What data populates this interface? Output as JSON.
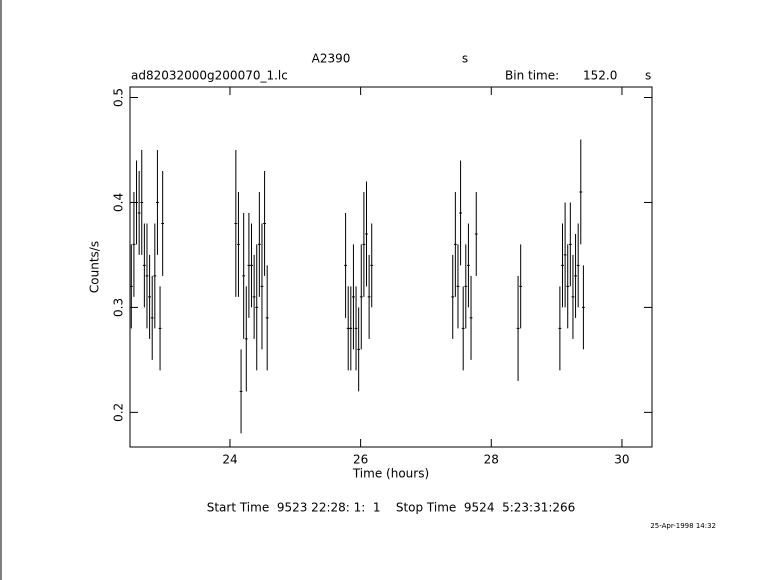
{
  "chart_data": {
    "type": "errorbar",
    "title": "A2390",
    "title_unit": "s",
    "subtitle": "ad82032000g200070_1.lc",
    "bin_label": "Bin time:",
    "bin_value": "152.0",
    "bin_unit": "s",
    "xlabel": "Time (hours)",
    "ylabel": "Counts/s",
    "footer": "Start Time  9523 22:28: 1:  1    Stop Time  9524  5:23:31:266",
    "date": "25-Apr-1998 14:32",
    "color": "#000000",
    "x": [
      22.49,
      22.53,
      22.57,
      22.61,
      22.65,
      22.69,
      22.73,
      22.77,
      22.81,
      22.85,
      22.89,
      22.93,
      22.97,
      24.09,
      24.13,
      24.17,
      24.21,
      24.25,
      24.29,
      24.33,
      24.37,
      24.41,
      24.45,
      24.49,
      24.53,
      24.57,
      25.77,
      25.81,
      25.85,
      25.89,
      25.93,
      25.97,
      26.01,
      26.05,
      26.09,
      26.13,
      26.17,
      27.41,
      27.45,
      27.49,
      27.53,
      27.57,
      27.61,
      27.65,
      27.69,
      27.77,
      28.41,
      28.45,
      29.05,
      29.09,
      29.13,
      29.17,
      29.21,
      29.25,
      29.29,
      29.33,
      29.37,
      29.41
    ],
    "values": [
      0.32,
      0.36,
      0.4,
      0.39,
      0.4,
      0.34,
      0.33,
      0.31,
      0.29,
      0.33,
      0.4,
      0.28,
      0.38,
      0.38,
      0.36,
      0.22,
      0.33,
      0.27,
      0.34,
      0.34,
      0.31,
      0.3,
      0.36,
      0.32,
      0.38,
      0.29,
      0.34,
      0.28,
      0.28,
      0.31,
      0.28,
      0.26,
      0.31,
      0.36,
      0.37,
      0.31,
      0.34,
      0.31,
      0.36,
      0.32,
      0.39,
      0.28,
      0.32,
      0.34,
      0.29,
      0.37,
      0.28,
      0.32,
      0.28,
      0.34,
      0.35,
      0.32,
      0.36,
      0.31,
      0.33,
      0.34,
      0.41,
      0.3
    ],
    "errors": [
      0.04,
      0.05,
      0.04,
      0.04,
      0.05,
      0.04,
      0.05,
      0.04,
      0.04,
      0.05,
      0.05,
      0.04,
      0.05,
      0.07,
      0.05,
      0.04,
      0.06,
      0.05,
      0.05,
      0.04,
      0.04,
      0.06,
      0.05,
      0.06,
      0.05,
      0.05,
      0.05,
      0.04,
      0.04,
      0.05,
      0.04,
      0.04,
      0.05,
      0.05,
      0.05,
      0.04,
      0.04,
      0.04,
      0.05,
      0.04,
      0.05,
      0.04,
      0.04,
      0.04,
      0.04,
      0.04,
      0.05,
      0.04,
      0.04,
      0.04,
      0.05,
      0.04,
      0.04,
      0.04,
      0.04,
      0.04,
      0.05,
      0.04
    ],
    "xlim": [
      22.47,
      30.46
    ],
    "ylim": [
      0.167,
      0.51
    ],
    "xticks": [
      24,
      26,
      28,
      30
    ],
    "yticks": [
      0.2,
      0.3,
      0.4,
      0.5
    ]
  }
}
